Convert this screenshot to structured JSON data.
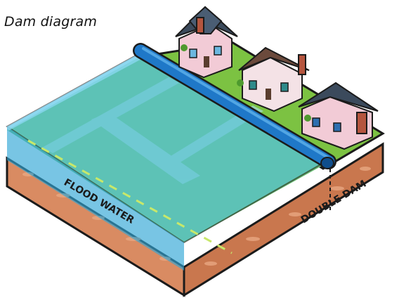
{
  "caption": "Dam diagram",
  "labels": {
    "flood_water": "FLOOD WATER",
    "double_dam": "DOUBLE DAM"
  },
  "colors": {
    "water": "#4fc3e8",
    "water_deep": "#2fa6d6",
    "grass": "#7cc242",
    "soil": "#d98b62",
    "soil_dark": "#b86c45",
    "dam_tube": "#1f78c8",
    "outline": "#1b1b1b"
  },
  "houses": [
    {
      "roof": "#3b4a5c",
      "walls": "#f2cbd6",
      "chimney": "#b5553e"
    },
    {
      "roof": "#6b4a3c",
      "walls": "#f4e2e6",
      "chimney": "#b5553e"
    },
    {
      "roof": "#3b4a5c",
      "walls": "#f2cbd6",
      "chimney": "#b5553e"
    }
  ]
}
